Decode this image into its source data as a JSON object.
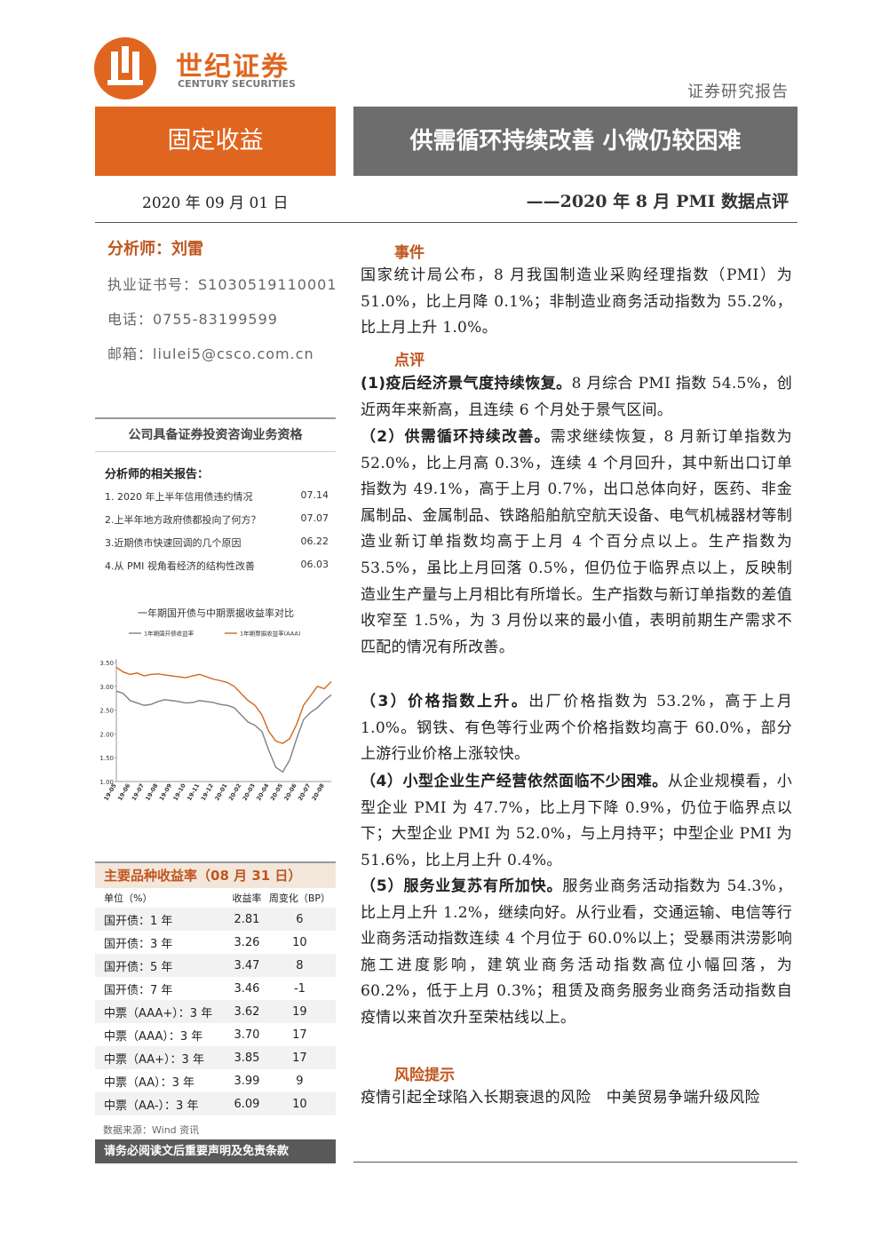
{
  "header": {
    "brand_cn": "世纪证券",
    "brand_en": "CENTURY SECURITIES",
    "report_type": "证券研究报告",
    "category": "固定收益",
    "title": "供需循环持续改善 小微仍较困难",
    "date": "2020 年 09 月 01 日",
    "subtitle": "——2020 年 8 月 PMI 数据点评"
  },
  "analyst": {
    "name": "分析师：刘雷",
    "license": "执业证书号：S1030519110001",
    "phone": "电话：0755-83199599",
    "email": "邮箱：liulei5@csco.com.cn",
    "qualification": "公司具备证券投资咨询业务资格"
  },
  "related_reports": {
    "title": "分析师的相关报告：",
    "items": [
      {
        "title": "1. 2020 年上半年信用债违约情况",
        "date": "07.14"
      },
      {
        "title": "2.上半年地方政府债都投向了何方？",
        "date": "07.07"
      },
      {
        "title": "3.近期债市快速回调的几个原因",
        "date": "06.22"
      },
      {
        "title": "4.从 PMI 视角看经济的结构性改善",
        "date": "06.03"
      }
    ]
  },
  "chart_data": {
    "type": "line",
    "title": "一年期国开债与中期票据收益率对比",
    "categories": [
      "19-05",
      null,
      "19-06",
      null,
      "19-07",
      null,
      "19-08",
      null,
      "19-09",
      null,
      "19-10",
      null,
      "19-11",
      null,
      "19-12",
      null,
      "20-01",
      null,
      "20-02",
      null,
      "20-03",
      null,
      "20-04",
      null,
      "20-05",
      null,
      "20-06",
      null,
      "20-07",
      null,
      "20-08",
      null
    ],
    "series": [
      {
        "name": "1年期国开债收益率",
        "color": "#808080",
        "values": [
          2.9,
          2.85,
          2.7,
          2.65,
          2.6,
          2.62,
          2.68,
          2.72,
          2.7,
          2.68,
          2.65,
          2.66,
          2.7,
          2.68,
          2.66,
          2.62,
          2.6,
          2.55,
          2.4,
          2.25,
          2.18,
          2.05,
          1.65,
          1.3,
          1.2,
          1.45,
          1.9,
          2.3,
          2.45,
          2.55,
          2.7,
          2.82
        ]
      },
      {
        "name": "1年期票据收益率(AAA)",
        "color": "#d4661f",
        "values": [
          3.4,
          3.3,
          3.25,
          3.28,
          3.22,
          3.25,
          3.26,
          3.24,
          3.22,
          3.2,
          3.18,
          3.22,
          3.25,
          3.2,
          3.15,
          3.12,
          3.08,
          3.0,
          2.85,
          2.7,
          2.6,
          2.4,
          2.05,
          1.85,
          1.8,
          1.9,
          2.2,
          2.6,
          2.8,
          3.0,
          2.95,
          3.1
        ]
      }
    ],
    "ylim": [
      1.0,
      3.5
    ],
    "yticks": [
      {
        "value": 1.0,
        "label": "1.00"
      },
      {
        "value": 1.5,
        "label": "1.50"
      },
      {
        "value": 2.0,
        "label": "2.00"
      },
      {
        "value": 2.5,
        "label": "2.50"
      },
      {
        "value": 3.0,
        "label": "3.00"
      },
      {
        "value": 3.5,
        "label": "3.50"
      }
    ],
    "grid": false
  },
  "yield_table": {
    "title": "主要品种收益率（08 月 31 日）",
    "header": [
      "单位（%）",
      "收益率",
      "周变化（BP）"
    ],
    "rows": [
      [
        "国开债：1 年",
        "2.81",
        "6"
      ],
      [
        "国开债：3 年",
        "3.26",
        "10"
      ],
      [
        "国开债：5 年",
        "3.47",
        "8"
      ],
      [
        "国开债：7 年",
        "3.46",
        "-1"
      ],
      [
        "中票（AAA+）：3 年",
        "3.62",
        "19"
      ],
      [
        "中票（AAA）：3 年",
        "3.70",
        "17"
      ],
      [
        "中票（AA+）：3 年",
        "3.85",
        "17"
      ],
      [
        "中票（AA）：3 年",
        "3.99",
        "9"
      ],
      [
        "中票（AA-）：3 年",
        "6.09",
        "10"
      ]
    ],
    "source": "数据来源：Wind 资讯"
  },
  "disclaimer": "请务必阅读文后重要声明及免责条款",
  "body": {
    "event_heading": "事件",
    "event_text": "国家统计局公布，8 月我国制造业采购经理指数（PMI）为 51.0%，比上月降 0.1%；非制造业商务活动指数为 55.2%，比上月上升 1.0%。",
    "comment_heading": "点评",
    "points": [
      {
        "lead": "(1)疫后经济景气度持续恢复。",
        "text": "8 月综合 PMI 指数 54.5%，创近两年来新高，且连续 6 个月处于景气区间。"
      },
      {
        "lead": "（2）供需循环持续改善。",
        "text": "需求继续恢复，8 月新订单指数为 52.0%，比上月高 0.3%，连续 4 个月回升，其中新出口订单指数为 49.1%，高于上月 0.7%，出口总体向好，医药、非金属制品、金属制品、铁路船舶航空航天设备、电气机械器材等制造业新订单指数均高于上月 4 个百分点以上。生产指数为 53.5%，虽比上月回落 0.5%，但仍位于临界点以上，反映制造业生产量与上月相比有所增长。生产指数与新订单指数的差值收窄至 1.5%，为 3 月份以来的最小值，表明前期生产需求不匹配的情况有所改善。"
      },
      {
        "lead": "（3）价格指数上升。",
        "text": "出厂价格指数为 53.2%，高于上月 1.0%。钢铁、有色等行业两个价格指数均高于 60.0%，部分上游行业价格上涨较快。"
      },
      {
        "lead": "（4）小型企业生产经营依然面临不少困难。",
        "text": "从企业规模看，小型企业 PMI 为 47.7%，比上月下降 0.9%，仍位于临界点以下；大型企业 PMI 为 52.0%，与上月持平；中型企业 PMI 为 51.6%，比上月上升 0.4%。"
      },
      {
        "lead": "（5）服务业复苏有所加快。",
        "text": "服务业商务活动指数为 54.3%，比上月上升 1.2%，继续向好。从行业看，交通运输、电信等行业商务活动指数连续 4 个月位于 60.0%以上；受暴雨洪涝影响施工进度影响，建筑业商务活动指数高位小幅回落，为 60.2%，低于上月 0.3%；租赁及商务服务业商务活动指数自疫情以来首次升至荣枯线以上。"
      }
    ],
    "risk_heading": "风险提示",
    "risk_text": "疫情引起全球陷入长期衰退的风险　中美贸易争端升级风险"
  }
}
